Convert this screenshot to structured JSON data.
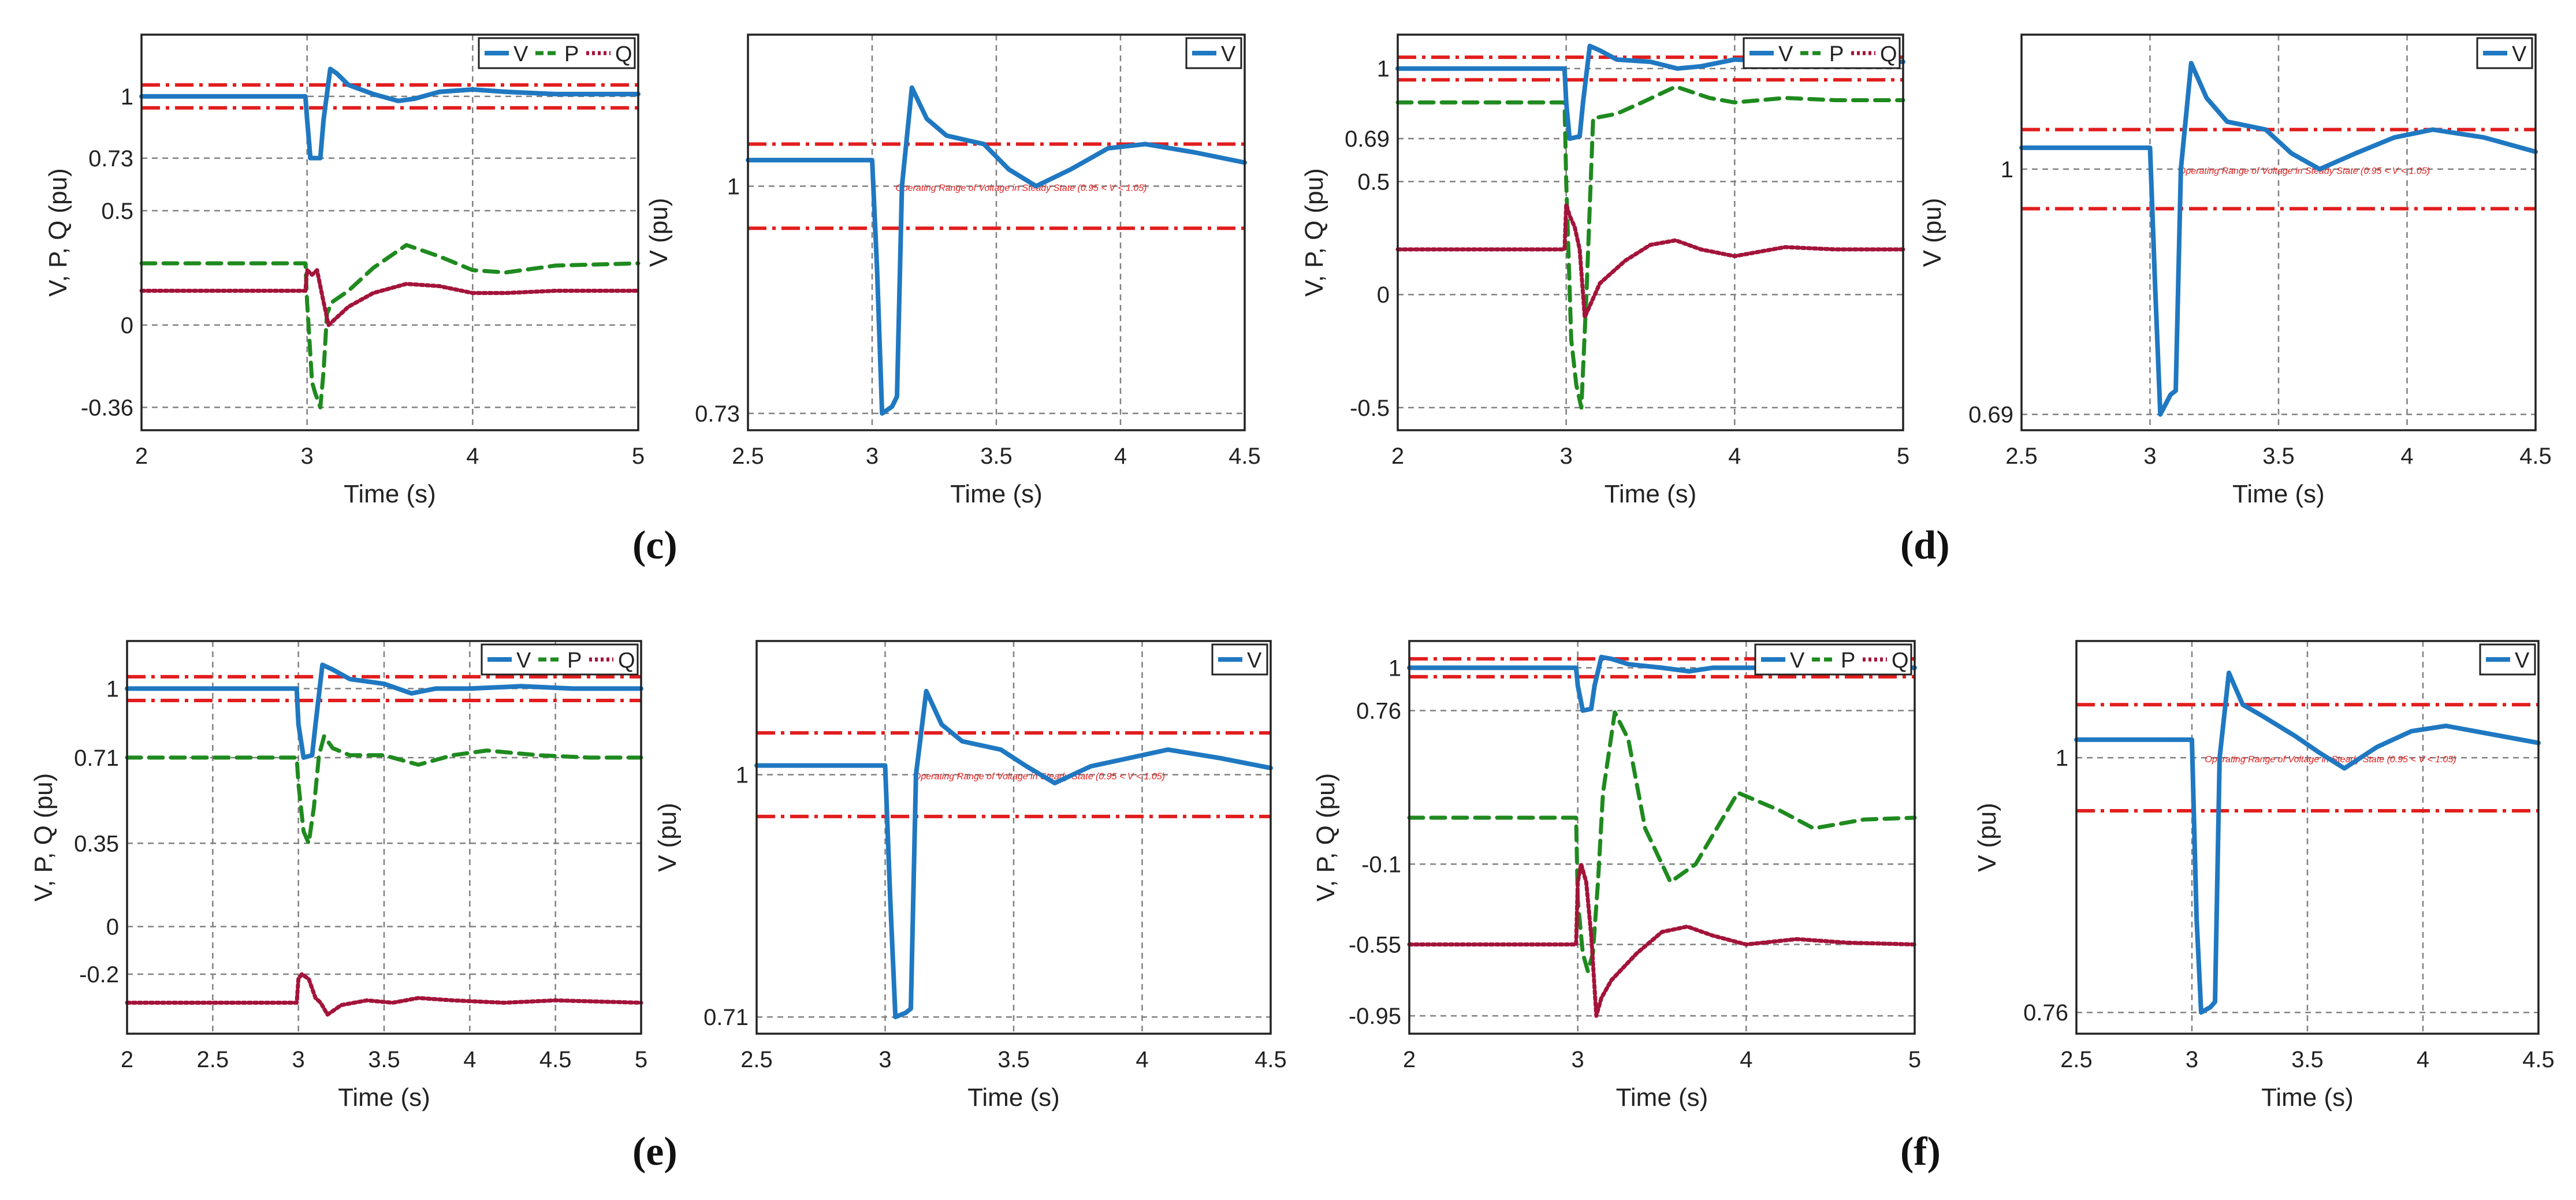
{
  "colors": {
    "V": "#1f78c1",
    "P": "#1f8a1f",
    "Q": "#a3143a",
    "limit": "#e21d1d",
    "grid": "#808080"
  },
  "panel_labels": [
    "(c)",
    "(d)",
    "(e)",
    "(f)"
  ],
  "chart_data": [
    {
      "id": "c-left",
      "type": "line",
      "xlabel": "Time (s)",
      "ylabel": "V, P, Q (pu)",
      "xlim": [
        2,
        5
      ],
      "ylim": [
        -0.46,
        1.27
      ],
      "xticks": [
        2,
        3,
        4,
        5
      ],
      "yticks": [
        -0.36,
        0,
        0.5,
        0.73,
        1
      ],
      "ytick_labels": [
        "-0.36",
        "0",
        "0.5",
        "0.73",
        "1"
      ],
      "limits": [
        0.95,
        1.05
      ],
      "legend": [
        "V",
        "P",
        "Q"
      ],
      "series": [
        {
          "name": "V",
          "style": "solid",
          "x": [
            2,
            2.99,
            3.0,
            3.02,
            3.08,
            3.1,
            3.14,
            3.18,
            3.25,
            3.4,
            3.55,
            3.65,
            3.8,
            4.0,
            4.2,
            4.5,
            5.0
          ],
          "y": [
            1.0,
            1.0,
            0.9,
            0.73,
            0.73,
            0.9,
            1.12,
            1.1,
            1.05,
            1.01,
            0.98,
            0.99,
            1.02,
            1.03,
            1.02,
            1.01,
            1.01
          ]
        },
        {
          "name": "P",
          "style": "dashed",
          "x": [
            2,
            2.99,
            3.0,
            3.03,
            3.05,
            3.08,
            3.1,
            3.12,
            3.15,
            3.25,
            3.4,
            3.6,
            3.8,
            4.0,
            4.2,
            4.5,
            5.0
          ],
          "y": [
            0.27,
            0.27,
            0.1,
            -0.25,
            -0.3,
            -0.36,
            -0.2,
            0.05,
            0.1,
            0.15,
            0.25,
            0.35,
            0.3,
            0.24,
            0.23,
            0.26,
            0.27
          ]
        },
        {
          "name": "Q",
          "style": "dotted",
          "x": [
            2,
            2.99,
            3.0,
            3.03,
            3.06,
            3.1,
            3.13,
            3.16,
            3.25,
            3.4,
            3.6,
            3.8,
            4.0,
            4.2,
            4.5,
            5.0
          ],
          "y": [
            0.15,
            0.15,
            0.24,
            0.22,
            0.24,
            0.1,
            0.0,
            0.02,
            0.08,
            0.14,
            0.18,
            0.17,
            0.14,
            0.14,
            0.15,
            0.15
          ]
        }
      ]
    },
    {
      "id": "c-right",
      "type": "line",
      "xlabel": "Time (s)",
      "ylabel": "V (pu)",
      "xlim": [
        2.5,
        4.5
      ],
      "ylim": [
        0.71,
        1.18
      ],
      "xticks": [
        2.5,
        3,
        3.5,
        4,
        4.5
      ],
      "yticks": [
        0.73,
        1
      ],
      "ytick_labels": [
        "0.73",
        "1"
      ],
      "limits": [
        0.95,
        1.05
      ],
      "legend": [
        "V"
      ],
      "annotation": "Operating Range of Voltage in Steady State (0.95 < V < 1.05)",
      "series": [
        {
          "name": "V",
          "style": "solid",
          "x": [
            2.5,
            3.0,
            3.02,
            3.04,
            3.08,
            3.1,
            3.12,
            3.16,
            3.22,
            3.3,
            3.45,
            3.55,
            3.66,
            3.8,
            3.95,
            4.1,
            4.3,
            4.5
          ],
          "y": [
            1.031,
            1.031,
            0.9,
            0.73,
            0.738,
            0.75,
            1.0,
            1.117,
            1.08,
            1.06,
            1.05,
            1.02,
            1.0,
            1.02,
            1.045,
            1.05,
            1.04,
            1.028
          ]
        }
      ]
    },
    {
      "id": "d-left",
      "type": "line",
      "xlabel": "Time (s)",
      "ylabel": "V, P, Q (pu)",
      "xlim": [
        2,
        5
      ],
      "ylim": [
        -0.6,
        1.15
      ],
      "xticks": [
        2,
        3,
        4,
        5
      ],
      "yticks": [
        -0.5,
        0,
        0.5,
        0.69,
        1
      ],
      "ytick_labels": [
        "-0.5",
        "0",
        "0.5",
        "0.69",
        "1"
      ],
      "limits": [
        0.95,
        1.05
      ],
      "legend": [
        "V",
        "P",
        "Q"
      ],
      "series": [
        {
          "name": "V",
          "style": "solid",
          "x": [
            2,
            2.99,
            3.0,
            3.02,
            3.08,
            3.1,
            3.14,
            3.2,
            3.3,
            3.5,
            3.66,
            3.8,
            4.0,
            4.3,
            4.6,
            5.0
          ],
          "y": [
            1.0,
            1.0,
            0.85,
            0.69,
            0.7,
            0.85,
            1.1,
            1.08,
            1.04,
            1.03,
            1.0,
            1.01,
            1.04,
            1.03,
            1.03,
            1.03
          ]
        },
        {
          "name": "P",
          "style": "dashed",
          "x": [
            2,
            2.99,
            3.0,
            3.03,
            3.06,
            3.09,
            3.12,
            3.16,
            3.3,
            3.45,
            3.65,
            3.85,
            4.0,
            4.3,
            4.6,
            5.0
          ],
          "y": [
            0.85,
            0.85,
            0.5,
            -0.2,
            -0.4,
            -0.5,
            0.0,
            0.78,
            0.8,
            0.85,
            0.92,
            0.87,
            0.85,
            0.87,
            0.86,
            0.86
          ]
        },
        {
          "name": "Q",
          "style": "dotted",
          "x": [
            2,
            2.99,
            3.0,
            3.02,
            3.05,
            3.08,
            3.11,
            3.14,
            3.2,
            3.35,
            3.5,
            3.65,
            3.8,
            4.0,
            4.3,
            4.6,
            5.0
          ],
          "y": [
            0.2,
            0.2,
            0.4,
            0.35,
            0.3,
            0.2,
            -0.1,
            -0.05,
            0.05,
            0.15,
            0.22,
            0.24,
            0.2,
            0.17,
            0.21,
            0.2,
            0.2
          ]
        }
      ]
    },
    {
      "id": "d-right",
      "type": "line",
      "xlabel": "Time (s)",
      "ylabel": "V (pu)",
      "xlim": [
        2.5,
        4.5
      ],
      "ylim": [
        0.67,
        1.17
      ],
      "xticks": [
        2.5,
        3,
        3.5,
        4,
        4.5
      ],
      "yticks": [
        0.69,
        1
      ],
      "ytick_labels": [
        "0.69",
        "1"
      ],
      "limits": [
        0.95,
        1.05
      ],
      "legend": [
        "V"
      ],
      "annotation": "Operating Range of Voltage in Steady State (0.95 < V < 1.05)",
      "series": [
        {
          "name": "V",
          "style": "solid",
          "x": [
            2.5,
            3.0,
            3.02,
            3.04,
            3.08,
            3.1,
            3.12,
            3.16,
            3.22,
            3.3,
            3.45,
            3.55,
            3.66,
            3.8,
            3.95,
            4.1,
            4.3,
            4.5
          ],
          "y": [
            1.027,
            1.027,
            0.85,
            0.69,
            0.715,
            0.72,
            1.0,
            1.134,
            1.09,
            1.06,
            1.05,
            1.02,
            1.0,
            1.02,
            1.04,
            1.05,
            1.04,
            1.022
          ]
        }
      ]
    },
    {
      "id": "e-left",
      "type": "line",
      "xlabel": "Time (s)",
      "ylabel": "V, P, Q (pu)",
      "xlim": [
        2,
        5
      ],
      "ylim": [
        -0.45,
        1.2
      ],
      "xticks": [
        2,
        2.5,
        3,
        3.5,
        4,
        4.5,
        5
      ],
      "yticks": [
        -0.2,
        0,
        0.35,
        0.71,
        1
      ],
      "ytick_labels": [
        "-0.2",
        "0",
        "0.35",
        "0.71",
        "1"
      ],
      "limits": [
        0.95,
        1.05
      ],
      "legend": [
        "V",
        "P",
        "Q"
      ],
      "series": [
        {
          "name": "V",
          "style": "solid",
          "x": [
            2,
            2.99,
            3.0,
            3.03,
            3.08,
            3.1,
            3.14,
            3.2,
            3.3,
            3.5,
            3.66,
            3.8,
            4.0,
            4.3,
            4.6,
            5.0
          ],
          "y": [
            1.0,
            1.0,
            0.85,
            0.71,
            0.72,
            0.85,
            1.1,
            1.08,
            1.04,
            1.02,
            0.98,
            1.0,
            1.0,
            1.01,
            1.0,
            1.0
          ]
        },
        {
          "name": "P",
          "style": "dashed",
          "x": [
            2,
            2.99,
            3.0,
            3.03,
            3.06,
            3.09,
            3.12,
            3.15,
            3.2,
            3.3,
            3.5,
            3.7,
            3.9,
            4.1,
            4.4,
            4.7,
            5.0
          ],
          "y": [
            0.71,
            0.71,
            0.6,
            0.4,
            0.35,
            0.5,
            0.72,
            0.8,
            0.75,
            0.72,
            0.72,
            0.68,
            0.72,
            0.74,
            0.72,
            0.71,
            0.71
          ]
        },
        {
          "name": "Q",
          "style": "dotted",
          "x": [
            2,
            2.99,
            3.0,
            3.02,
            3.06,
            3.1,
            3.13,
            3.17,
            3.25,
            3.4,
            3.55,
            3.7,
            3.9,
            4.2,
            4.5,
            5.0
          ],
          "y": [
            -0.32,
            -0.32,
            -0.22,
            -0.2,
            -0.22,
            -0.3,
            -0.32,
            -0.37,
            -0.33,
            -0.31,
            -0.32,
            -0.3,
            -0.31,
            -0.32,
            -0.31,
            -0.32
          ]
        }
      ]
    },
    {
      "id": "e-right",
      "type": "line",
      "xlabel": "Time (s)",
      "ylabel": "V (pu)",
      "xlim": [
        2.5,
        4.5
      ],
      "ylim": [
        0.69,
        1.16
      ],
      "xticks": [
        2.5,
        3,
        3.5,
        4,
        4.5
      ],
      "yticks": [
        0.71,
        1
      ],
      "ytick_labels": [
        "0.71",
        "1"
      ],
      "limits": [
        0.95,
        1.05
      ],
      "legend": [
        "V"
      ],
      "annotation": "Operating Range of Voltage in Steady State (0.95 < V < 1.05)",
      "series": [
        {
          "name": "V",
          "style": "solid",
          "x": [
            2.5,
            3.0,
            3.02,
            3.04,
            3.08,
            3.1,
            3.12,
            3.16,
            3.22,
            3.3,
            3.45,
            3.55,
            3.66,
            3.8,
            3.95,
            4.1,
            4.3,
            4.5
          ],
          "y": [
            1.011,
            1.011,
            0.85,
            0.71,
            0.715,
            0.72,
            1.0,
            1.1,
            1.06,
            1.04,
            1.03,
            1.01,
            0.99,
            1.01,
            1.02,
            1.03,
            1.02,
            1.008
          ]
        }
      ]
    },
    {
      "id": "f-left",
      "type": "line",
      "xlabel": "Time (s)",
      "ylabel": "V, P, Q (pu)",
      "xlim": [
        2,
        5
      ],
      "ylim": [
        -1.05,
        1.15
      ],
      "xticks": [
        2,
        3,
        4,
        5
      ],
      "yticks": [
        -0.95,
        -0.55,
        -0.1,
        0.76,
        1
      ],
      "ytick_labels": [
        "-0.95",
        "-0.55",
        "-0.1",
        "0.76",
        "1"
      ],
      "limits": [
        0.95,
        1.05
      ],
      "legend": [
        "V",
        "P",
        "Q"
      ],
      "series": [
        {
          "name": "V",
          "style": "solid",
          "x": [
            2,
            2.99,
            3.0,
            3.03,
            3.08,
            3.1,
            3.14,
            3.2,
            3.3,
            3.5,
            3.66,
            3.8,
            4.0,
            4.3,
            4.6,
            5.0
          ],
          "y": [
            1.0,
            1.0,
            0.9,
            0.76,
            0.77,
            0.9,
            1.06,
            1.05,
            1.02,
            1.0,
            0.98,
            1.0,
            1.0,
            1.0,
            1.0,
            1.0
          ]
        },
        {
          "name": "P",
          "style": "dashed",
          "x": [
            2,
            2.99,
            3.0,
            3.03,
            3.06,
            3.09,
            3.12,
            3.15,
            3.22,
            3.3,
            3.4,
            3.55,
            3.7,
            3.95,
            4.2,
            4.4,
            4.7,
            5.0
          ],
          "y": [
            0.16,
            0.16,
            -0.3,
            -0.6,
            -0.7,
            -0.6,
            -0.2,
            0.3,
            0.75,
            0.6,
            0.1,
            -0.2,
            -0.1,
            0.3,
            0.2,
            0.1,
            0.15,
            0.16
          ]
        },
        {
          "name": "Q",
          "style": "dotted",
          "x": [
            2,
            2.99,
            3.0,
            3.02,
            3.05,
            3.08,
            3.11,
            3.14,
            3.2,
            3.35,
            3.5,
            3.65,
            3.8,
            4.0,
            4.3,
            4.6,
            5.0
          ],
          "y": [
            -0.55,
            -0.55,
            -0.2,
            -0.1,
            -0.2,
            -0.5,
            -0.95,
            -0.85,
            -0.75,
            -0.6,
            -0.48,
            -0.45,
            -0.5,
            -0.55,
            -0.52,
            -0.54,
            -0.55
          ]
        }
      ]
    },
    {
      "id": "f-right",
      "type": "line",
      "xlabel": "Time (s)",
      "ylabel": "V (pu)",
      "xlim": [
        2.5,
        4.5
      ],
      "ylim": [
        0.74,
        1.11
      ],
      "xticks": [
        2.5,
        3,
        3.5,
        4,
        4.5
      ],
      "yticks": [
        0.76,
        1
      ],
      "ytick_labels": [
        "0.76",
        "1"
      ],
      "limits": [
        0.95,
        1.05
      ],
      "legend": [
        "V"
      ],
      "annotation": "Operating Range of Voltage in Steady State (0.95 < V < 1.05)",
      "series": [
        {
          "name": "V",
          "style": "solid",
          "x": [
            2.5,
            3.0,
            3.02,
            3.04,
            3.08,
            3.1,
            3.12,
            3.16,
            3.22,
            3.3,
            3.45,
            3.55,
            3.66,
            3.8,
            3.95,
            4.1,
            4.3,
            4.5
          ],
          "y": [
            1.017,
            1.017,
            0.85,
            0.76,
            0.765,
            0.77,
            1.0,
            1.08,
            1.05,
            1.04,
            1.02,
            1.005,
            0.99,
            1.01,
            1.025,
            1.03,
            1.022,
            1.014
          ]
        }
      ]
    }
  ]
}
